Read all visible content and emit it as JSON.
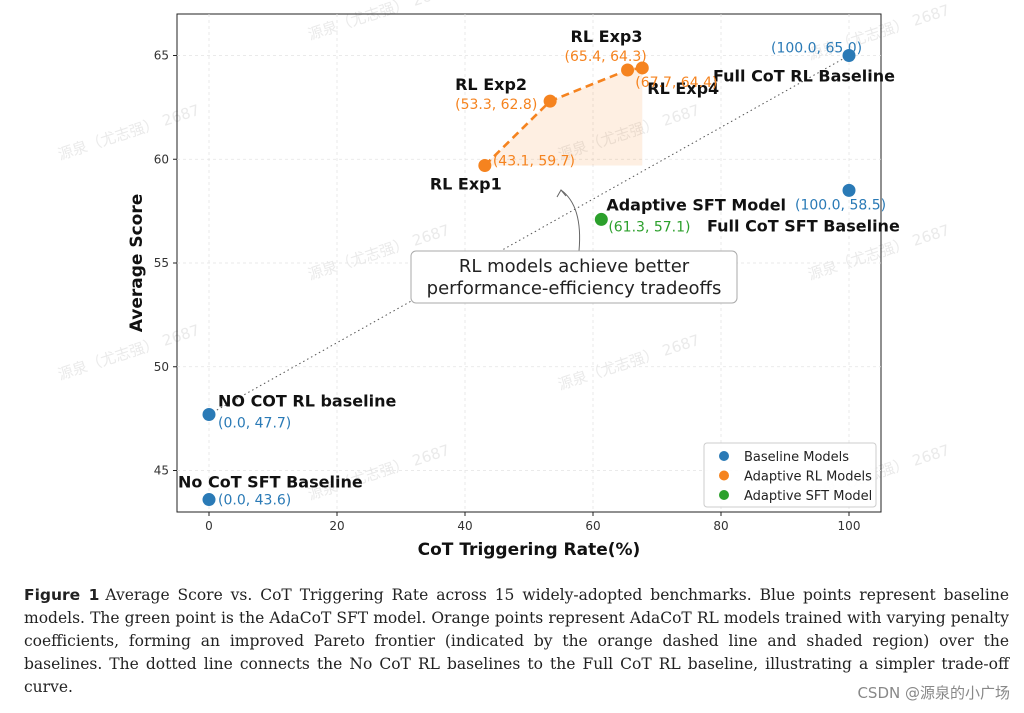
{
  "chart_data": {
    "type": "scatter",
    "xlabel": "CoT Triggering Rate(%)",
    "ylabel": "Average Score",
    "xlim": [
      -5,
      105
    ],
    "ylim": [
      43,
      67
    ],
    "grid": true,
    "legend_placement": "bottom-right",
    "x_ticks": [
      0,
      20,
      40,
      60,
      80,
      100
    ],
    "y_ticks": [
      45,
      50,
      55,
      60,
      65
    ],
    "series": [
      {
        "name": "Baseline Models",
        "color": "#2a7ab6",
        "points": [
          {
            "x": 100.0,
            "y": 65.0,
            "label": "Full CoT RL Baseline",
            "value_label": "(100.0, 65.0)"
          },
          {
            "x": 100.0,
            "y": 58.5,
            "label": "Full CoT SFT Baseline",
            "value_label": "(100.0, 58.5)"
          },
          {
            "x": 0.0,
            "y": 47.7,
            "label": "NO COT RL baseline",
            "value_label": "(0.0, 47.7)"
          },
          {
            "x": 0.0,
            "y": 43.6,
            "label": "No CoT SFT Baseline",
            "value_label": "(0.0, 43.6)"
          }
        ]
      },
      {
        "name": "Adaptive RL Models",
        "color": "#f5831f",
        "points": [
          {
            "x": 43.1,
            "y": 59.7,
            "label": "RL Exp1",
            "value_label": "(43.1, 59.7)"
          },
          {
            "x": 53.3,
            "y": 62.8,
            "label": "RL Exp2",
            "value_label": "(53.3, 62.8)"
          },
          {
            "x": 65.4,
            "y": 64.3,
            "label": "RL Exp3",
            "value_label": "(65.4, 64.3)"
          },
          {
            "x": 67.7,
            "y": 64.4,
            "label": "RL Exp4",
            "value_label": "(67.7, 64.4)"
          }
        ]
      },
      {
        "name": "Adaptive SFT Model",
        "color": "#2ca02c",
        "points": [
          {
            "x": 61.3,
            "y": 57.1,
            "label": "Adaptive SFT Model",
            "value_label": "(61.3, 57.1)"
          }
        ]
      }
    ],
    "annotation": {
      "text_line1": "RL models achieve better",
      "text_line2": "performance-efficiency tradeoffs",
      "arrow_target": {
        "x": 55,
        "y": 59
      }
    },
    "trend_line": {
      "from": {
        "x": 0.0,
        "y": 47.7
      },
      "to": {
        "x": 100.0,
        "y": 65.0
      }
    }
  },
  "caption": {
    "label": "Figure 1",
    "text": "Average Score vs. CoT Triggering Rate across 15 widely-adopted benchmarks. Blue points represent baseline models. The green point is the AdaCoT SFT model. Orange points represent AdaCoT RL models trained with varying penalty coefficients, forming an improved Pareto frontier (indicated by the orange dashed line and shaded region) over the baselines. The dotted line connects the No CoT RL baselines to the Full CoT RL baseline, illustrating a simpler trade-off curve."
  },
  "watermark": {
    "text": "源泉（尤志强） 2687",
    "credit": "CSDN @源泉的小广场"
  }
}
